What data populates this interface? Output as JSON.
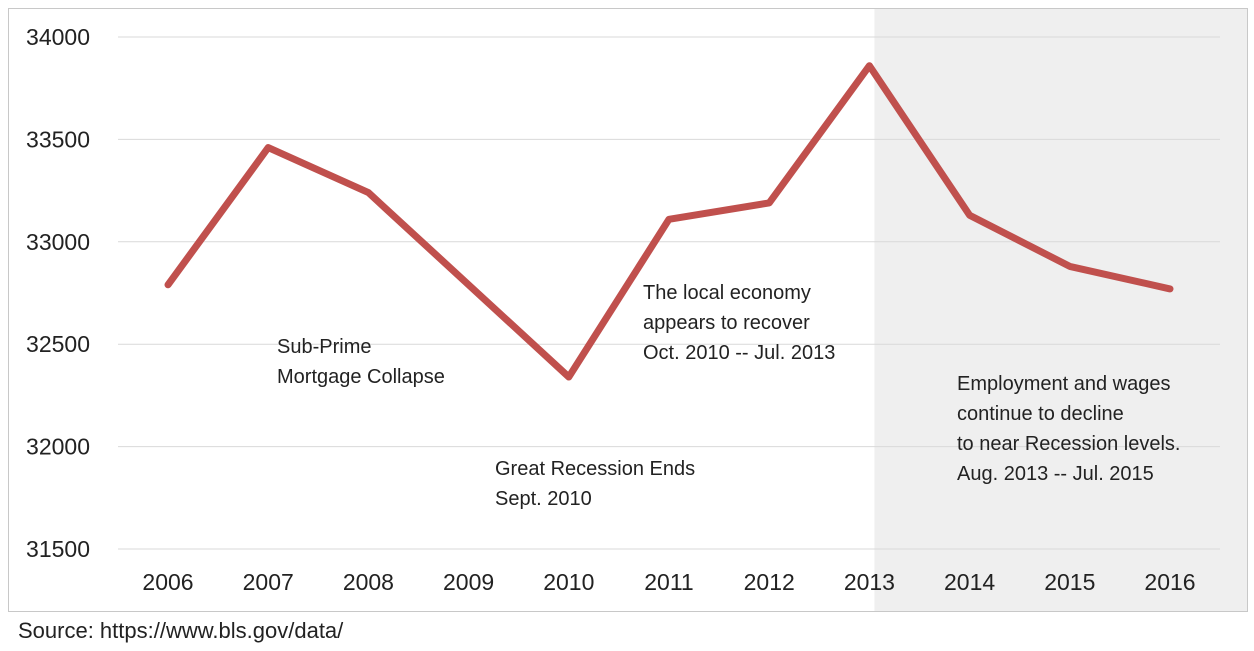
{
  "chart_data": {
    "type": "line",
    "title": "",
    "xlabel": "",
    "ylabel": "",
    "x": [
      "2006",
      "2007",
      "2008",
      "2009",
      "2010",
      "2011",
      "2012",
      "2013",
      "2014",
      "2015",
      "2016"
    ],
    "series": [
      {
        "values": [
          32790,
          33460,
          33240,
          32790,
          32340,
          33110,
          33190,
          33860,
          33130,
          32880,
          32770
        ]
      }
    ],
    "yticks": [
      31500,
      32000,
      32500,
      33000,
      33500,
      34000
    ],
    "ylim": [
      31500,
      34000
    ],
    "grid": true,
    "line_color": "#c0504d",
    "shaded_region": {
      "from": "2013",
      "to": "2016",
      "color": "#efefef"
    },
    "annotations": [
      {
        "lines": [
          "Sub-Prime",
          "Mortgage Collapse"
        ]
      },
      {
        "lines": [
          "Great Recession Ends",
          "Sept. 2010"
        ]
      },
      {
        "lines": [
          "The local economy",
          "appears to recover",
          "Oct. 2010 -- Jul. 2013"
        ]
      },
      {
        "lines": [
          "Employment and wages",
          "continue to decline",
          "to near Recession levels.",
          "Aug. 2013 -- Jul. 2015"
        ]
      }
    ]
  },
  "source": "Source: https://www.bls.gov/data/"
}
